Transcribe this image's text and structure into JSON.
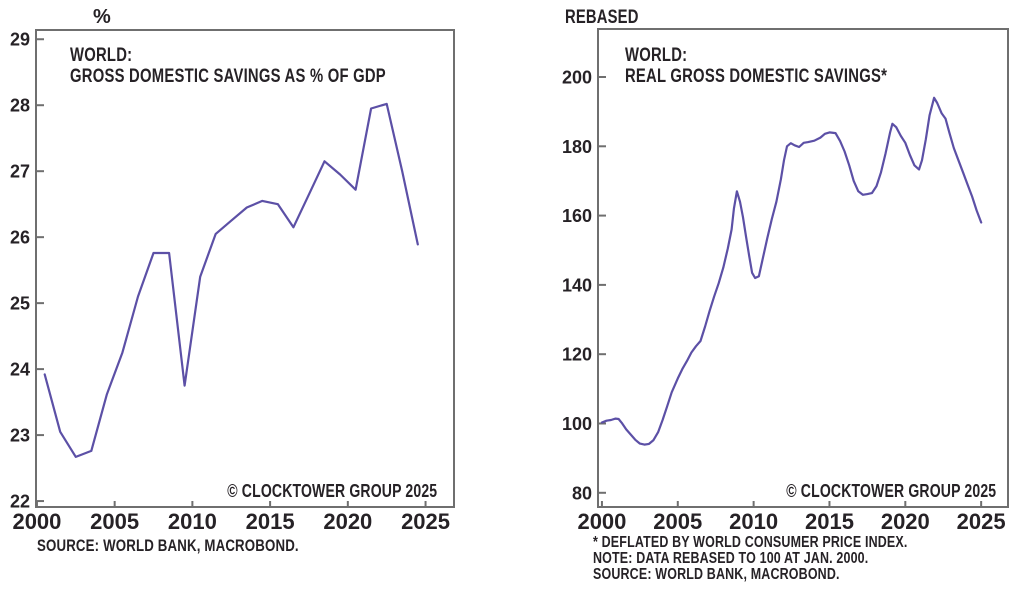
{
  "colors": {
    "line": "#5c50a6",
    "axis": "#6f6f6f",
    "text": "#262226",
    "background": "#ffffff"
  },
  "chart_data": [
    {
      "id": "world-gross-domestic-savings-pct-gdp",
      "type": "line",
      "unit_label": "%",
      "title_lines": [
        "WORLD:",
        "GROSS DOMESTIC SAVINGS AS % OF GDP"
      ],
      "copyright": "© CLOCKTOWER GROUP 2025",
      "footnotes": [
        "SOURCE: WORLD BANK, MACROBOND."
      ],
      "legend_position": "none",
      "grid": false,
      "x_ticks": [
        2000,
        2005,
        2010,
        2015,
        2020,
        2025
      ],
      "y_ticks": [
        29,
        28,
        27,
        26,
        25,
        24,
        23,
        22
      ],
      "xlim": [
        1999.94,
        2026.83
      ],
      "ylim": [
        21.91,
        29.14
      ],
      "x_plot_offset": 0.5,
      "x": [
        2000,
        2001,
        2002,
        2003,
        2004,
        2005,
        2006,
        2007,
        2008,
        2009,
        2010,
        2011,
        2012,
        2013,
        2014,
        2015,
        2016,
        2017,
        2018,
        2019,
        2020,
        2021,
        2022,
        2023,
        2024
      ],
      "values": [
        23.92,
        23.05,
        22.67,
        22.76,
        23.62,
        24.25,
        25.1,
        25.76,
        25.76,
        23.75,
        25.4,
        26.05,
        26.25,
        26.45,
        26.55,
        26.5,
        26.15,
        26.65,
        27.15,
        26.95,
        26.72,
        27.95,
        28.02,
        27.0,
        25.89
      ]
    },
    {
      "id": "world-real-gross-domestic-savings",
      "type": "line",
      "unit_label": "REBASED",
      "title_lines": [
        "WORLD:",
        "REAL GROSS DOMESTIC SAVINGS*"
      ],
      "copyright": "© CLOCKTOWER GROUP 2025",
      "footnotes": [
        "* DEFLATED BY WORLD CONSUMER PRICE INDEX.",
        "NOTE: DATA REBASED TO 100 AT JAN. 2000.",
        "SOURCE: WORLD BANK, MACROBOND."
      ],
      "legend_position": "none",
      "grid": false,
      "x_ticks": [
        2000,
        2005,
        2010,
        2015,
        2020,
        2025
      ],
      "y_ticks": [
        200,
        180,
        160,
        140,
        120,
        100,
        80
      ],
      "xlim": [
        1999.74,
        2026.77
      ],
      "ylim": [
        75.9,
        213.85
      ],
      "x_plot_offset": 0,
      "x": [
        2000.0,
        2000.3,
        2000.6,
        2000.9,
        2001.1,
        2001.3,
        2001.6,
        2001.9,
        2002.2,
        2002.5,
        2002.8,
        2003.1,
        2003.4,
        2003.7,
        2004.0,
        2004.3,
        2004.6,
        2005.0,
        2005.3,
        2005.6,
        2005.9,
        2006.2,
        2006.5,
        2006.8,
        2007.1,
        2007.4,
        2007.7,
        2008.0,
        2008.3,
        2008.55,
        2008.7,
        2008.9,
        2009.1,
        2009.3,
        2009.5,
        2009.7,
        2009.9,
        2010.1,
        2010.35,
        2010.6,
        2010.9,
        2011.2,
        2011.5,
        2011.8,
        2012.0,
        2012.2,
        2012.45,
        2012.7,
        2013.0,
        2013.3,
        2013.6,
        2014.0,
        2014.4,
        2014.7,
        2015.0,
        2015.4,
        2015.7,
        2016.0,
        2016.3,
        2016.6,
        2016.9,
        2017.2,
        2017.5,
        2017.8,
        2018.1,
        2018.4,
        2018.7,
        2019.0,
        2019.15,
        2019.4,
        2019.7,
        2020.0,
        2020.3,
        2020.6,
        2020.9,
        2021.1,
        2021.35,
        2021.6,
        2021.9,
        2022.1,
        2022.4,
        2022.65,
        2022.9,
        2023.2,
        2023.5,
        2023.8,
        2024.1,
        2024.4,
        2024.7,
        2025.0
      ],
      "values": [
        100.3,
        100.8,
        101.0,
        101.4,
        101.3,
        100.2,
        98.3,
        96.8,
        95.3,
        94.2,
        93.9,
        94.1,
        95.2,
        97.5,
        101.0,
        105.0,
        109.0,
        113.0,
        115.7,
        118.0,
        120.5,
        122.3,
        123.8,
        128.0,
        132.5,
        136.7,
        140.5,
        145.0,
        150.5,
        156.0,
        162.0,
        167.0,
        164.0,
        159.5,
        154.0,
        148.5,
        143.5,
        142.0,
        142.5,
        147.5,
        153.5,
        159.0,
        164.0,
        170.5,
        176.0,
        180.0,
        180.9,
        180.3,
        179.8,
        181.0,
        181.2,
        181.6,
        182.5,
        183.6,
        184.0,
        183.8,
        181.5,
        178.5,
        174.5,
        170.0,
        167.0,
        166.0,
        166.2,
        166.5,
        168.5,
        172.5,
        178.0,
        184.0,
        186.5,
        185.5,
        183.0,
        181.0,
        177.5,
        174.5,
        173.3,
        176.0,
        182.0,
        189.0,
        194.0,
        192.5,
        189.5,
        188.0,
        184.0,
        179.5,
        176.0,
        172.5,
        169.0,
        165.5,
        161.5,
        158.0
      ]
    }
  ]
}
